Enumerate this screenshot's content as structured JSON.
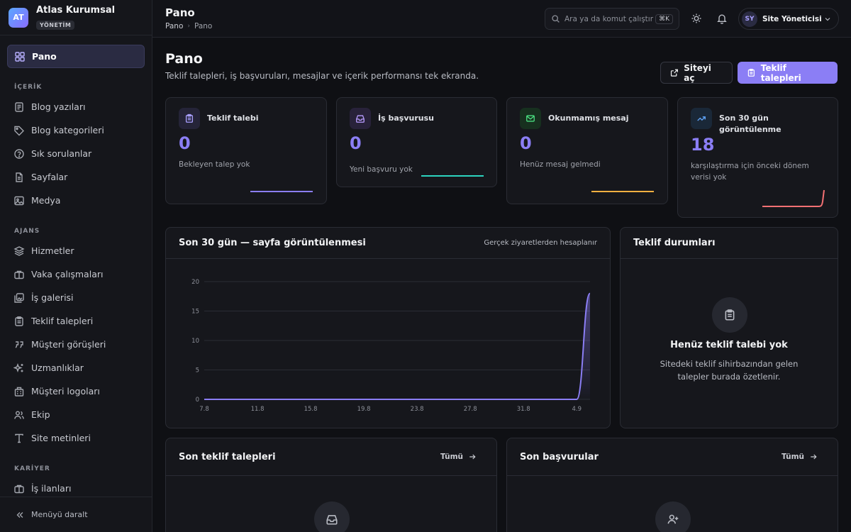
{
  "brand": {
    "logo": "AT",
    "name": "Atlas Kurumsal",
    "badge": "YÖNETİM"
  },
  "sidebar": {
    "top": [
      {
        "label": "Pano",
        "icon": "grid-icon",
        "active": true
      }
    ],
    "sections": [
      {
        "title": "İÇERİK",
        "items": [
          {
            "label": "Blog yazıları",
            "icon": "document-icon"
          },
          {
            "label": "Blog kategorileri",
            "icon": "tag-icon"
          },
          {
            "label": "Sık sorulanlar",
            "icon": "question-icon"
          },
          {
            "label": "Sayfalar",
            "icon": "page-icon"
          },
          {
            "label": "Medya",
            "icon": "image-icon"
          }
        ]
      },
      {
        "title": "AJANS",
        "items": [
          {
            "label": "Hizmetler",
            "icon": "layers-icon"
          },
          {
            "label": "Vaka çalışmaları",
            "icon": "briefcase-icon"
          },
          {
            "label": "İş galerisi",
            "icon": "gallery-icon"
          },
          {
            "label": "Teklif talepleri",
            "icon": "clipboard-icon"
          },
          {
            "label": "Müşteri görüşleri",
            "icon": "quote-icon"
          },
          {
            "label": "Uzmanlıklar",
            "icon": "sparkles-icon"
          },
          {
            "label": "Müşteri logoları",
            "icon": "building-icon"
          },
          {
            "label": "Ekip",
            "icon": "users-icon"
          },
          {
            "label": "Site metinleri",
            "icon": "type-icon"
          }
        ]
      },
      {
        "title": "KARİYER",
        "items": [
          {
            "label": "İş ilanları",
            "icon": "briefcase-icon"
          }
        ]
      }
    ],
    "collapse_label": "Menüyü daralt"
  },
  "header": {
    "title": "Pano",
    "breadcrumbs": [
      "Pano",
      "Pano"
    ],
    "search_placeholder": "Ara ya da komut çalıştır",
    "search_shortcut": "⌘K",
    "user": {
      "initials": "SY",
      "name": "Site Yöneticisi"
    }
  },
  "page": {
    "title": "Pano",
    "subtitle": "Teklif talepleri, iş başvuruları, mesajlar ve içerik performansı tek ekranda.",
    "open_site_label": "Siteyi aç",
    "quotes_label": "Teklif talepleri"
  },
  "stats": [
    {
      "label": "Teklif talebi",
      "value": "0",
      "desc": "Bekleyen talep yok",
      "color": "#8b7ef5",
      "icon": "clipboard-icon"
    },
    {
      "label": "İş başvurusu",
      "value": "0",
      "desc": "Yeni başvuru yok",
      "color": "#2dd4bf",
      "icon": "inbox-icon"
    },
    {
      "label": "Okunmamış mesaj",
      "value": "0",
      "desc": "Henüz mesaj gelmedi",
      "color": "#f5b041",
      "icon": "mail-icon"
    },
    {
      "label": "Son 30 gün görüntülenme",
      "value": "18",
      "desc": "karşılaştırma için önceki dönem verisi yok",
      "color": "#f47174",
      "icon": "trending-icon"
    }
  ],
  "views_panel": {
    "title": "Son 30 gün — sayfa görüntülenmesi",
    "note": "Gerçek ziyaretlerden hesaplanır"
  },
  "chart_data": {
    "type": "area",
    "x": [
      "7.8",
      "8.8",
      "9.8",
      "10.8",
      "11.8",
      "12.8",
      "13.8",
      "14.8",
      "15.8",
      "16.8",
      "17.8",
      "18.8",
      "19.8",
      "20.8",
      "21.8",
      "22.8",
      "23.8",
      "24.8",
      "25.8",
      "26.8",
      "27.8",
      "28.8",
      "29.8",
      "30.8",
      "31.8",
      "1.9",
      "2.9",
      "3.9",
      "4.9",
      "5.9"
    ],
    "values": [
      0,
      0,
      0,
      0,
      0,
      0,
      0,
      0,
      0,
      0,
      0,
      0,
      0,
      0,
      0,
      0,
      0,
      0,
      0,
      0,
      0,
      0,
      0,
      0,
      0,
      0,
      0,
      0,
      0,
      18
    ],
    "xticks": [
      "7.8",
      "11.8",
      "15.8",
      "19.8",
      "23.8",
      "27.8",
      "31.8",
      "4.9"
    ],
    "yticks": [
      0,
      5,
      10,
      15,
      20
    ],
    "ylim": [
      0,
      20
    ],
    "grid": true,
    "color": "#8b7ef5"
  },
  "quote_status_panel": {
    "title": "Teklif durumları",
    "empty_title": "Henüz teklif talebi yok",
    "empty_desc_1": "Sitedeki teklif sihirbazından gelen",
    "empty_desc_2": "talepler burada özetlenir."
  },
  "recent_quotes": {
    "title": "Son teklif talepleri",
    "link": "Tümü"
  },
  "recent_applications": {
    "title": "Son başvurular",
    "link": "Tümü"
  }
}
